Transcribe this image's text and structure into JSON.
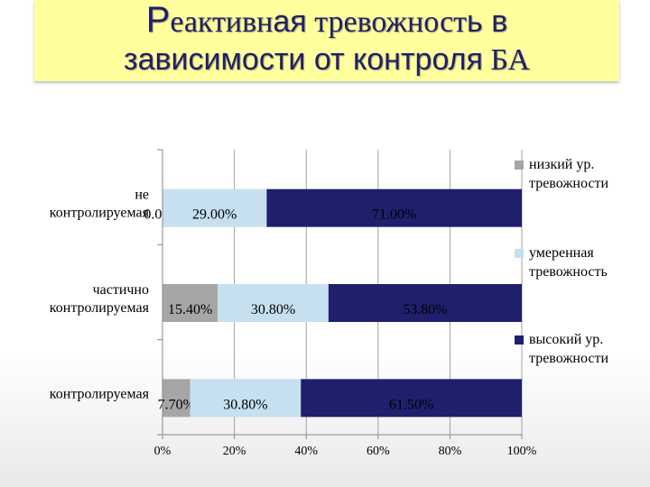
{
  "title": {
    "line1_part1": "Р",
    "line1_part2": "еактивн",
    "line1_part3": "ая",
    "line1_part4": " тревожност",
    "line1_part5": "ь в",
    "line2_part1": "зависимости от контроля",
    "line2_part2": " БА"
  },
  "colors": {
    "low": "#a6a6a6",
    "moderate": "#c6e0f0",
    "high": "#1f1f6e",
    "axis": "#888888",
    "grid": "#a0a0a0",
    "title_bg": "#ffff9e",
    "title_text": "#1f1f6b"
  },
  "chart_data": {
    "type": "bar",
    "orientation": "horizontal",
    "stacked": true,
    "categories": [
      "не контролируемая",
      "частично контролируемая",
      "контролируемая"
    ],
    "category_lines": [
      [
        "не",
        "контролируемая"
      ],
      [
        "частично",
        "контролируемая"
      ],
      [
        "контролируемая"
      ]
    ],
    "series": [
      {
        "name": "низкий ур. тревожности",
        "name_lines": [
          "низкий ур.",
          "тревожности"
        ],
        "values": [
          0.0,
          15.4,
          7.7
        ],
        "labels": [
          "0.00%",
          "15.40%",
          "7.70%"
        ]
      },
      {
        "name": "умеренная тревожность",
        "name_lines": [
          "умеренная",
          "тревожность"
        ],
        "values": [
          29.0,
          30.8,
          30.8
        ],
        "labels": [
          "29.00%",
          "30.80%",
          "30.80%"
        ]
      },
      {
        "name": "высокий ур. тревожности",
        "name_lines": [
          "высокий ур.",
          "тревожности"
        ],
        "values": [
          71.0,
          53.8,
          61.5
        ],
        "labels": [
          "71.00%",
          "53.80%",
          "61.50%"
        ]
      }
    ],
    "xlim": [
      0,
      100
    ],
    "x_ticks": [
      "0%",
      "20%",
      "40%",
      "60%",
      "80%",
      "100%"
    ],
    "grid": true,
    "legend_position": "right"
  }
}
